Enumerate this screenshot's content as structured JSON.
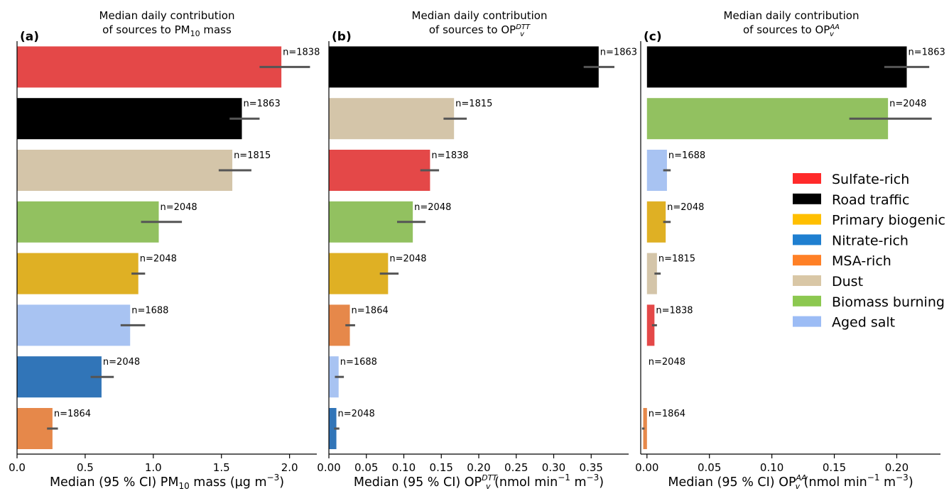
{
  "chart_data": [
    {
      "type": "bar",
      "orientation": "horizontal",
      "panel_label": "(a)",
      "title_lines": [
        "Median daily contribution",
        "of sources to PM",
        "10",
        " mass"
      ],
      "xlabel": [
        "Median (95 % CI) PM",
        "10",
        " mass (µg  m",
        "−3",
        ")"
      ],
      "xlim": [
        0,
        2.2
      ],
      "xticks": [
        0.0,
        0.5,
        1.0,
        1.5,
        2.0
      ],
      "xtick_labels": [
        "0.0",
        "0.5",
        "1.0",
        "1.5",
        "2.0"
      ],
      "bars": [
        {
          "source": "Sulfate-rich",
          "value": 1.94,
          "ci": [
            1.78,
            2.15
          ],
          "n": "n=1838"
        },
        {
          "source": "Road traffic",
          "value": 1.65,
          "ci": [
            1.56,
            1.78
          ],
          "n": "n=1863"
        },
        {
          "source": "Dust",
          "value": 1.58,
          "ci": [
            1.48,
            1.72
          ],
          "n": "n=1815"
        },
        {
          "source": "Biomass burning",
          "value": 1.04,
          "ci": [
            0.91,
            1.21
          ],
          "n": "n=2048"
        },
        {
          "source": "Primary biogenic",
          "value": 0.89,
          "ci": [
            0.84,
            0.94
          ],
          "n": "n=2048"
        },
        {
          "source": "Aged salt",
          "value": 0.83,
          "ci": [
            0.76,
            0.94
          ],
          "n": "n=1688"
        },
        {
          "source": "Nitrate-rich",
          "value": 0.62,
          "ci": [
            0.54,
            0.71
          ],
          "n": "n=2048"
        },
        {
          "source": "MSA-rich",
          "value": 0.26,
          "ci": [
            0.22,
            0.3
          ],
          "n": "n=1864"
        }
      ]
    },
    {
      "type": "bar",
      "orientation": "horizontal",
      "panel_label": "(b)",
      "title_lines": [
        "Median daily contribution",
        "of sources to OP",
        "DTT",
        "v"
      ],
      "xlabel": [
        "Median (95 % CI) OP",
        "DTT",
        "v",
        " (nmol  min",
        "−1",
        "  m",
        "−3",
        ")"
      ],
      "xlim": [
        0,
        0.4
      ],
      "xticks": [
        0.0,
        0.05,
        0.1,
        0.15,
        0.2,
        0.25,
        0.3,
        0.35
      ],
      "xtick_labels": [
        "0.00",
        "0.05",
        "0.10",
        "0.15",
        "0.20",
        "0.25",
        "0.30",
        "0.35"
      ],
      "bars": [
        {
          "source": "Road traffic",
          "value": 0.36,
          "ci": [
            0.34,
            0.381
          ],
          "n": "n=1863"
        },
        {
          "source": "Dust",
          "value": 0.167,
          "ci": [
            0.153,
            0.184
          ],
          "n": "n=1815"
        },
        {
          "source": "Sulfate-rich",
          "value": 0.135,
          "ci": [
            0.122,
            0.147
          ],
          "n": "n=1838"
        },
        {
          "source": "Biomass burning",
          "value": 0.112,
          "ci": [
            0.091,
            0.129
          ],
          "n": "n=2048"
        },
        {
          "source": "Primary biogenic",
          "value": 0.079,
          "ci": [
            0.068,
            0.093
          ],
          "n": "n=2048"
        },
        {
          "source": "MSA-rich",
          "value": 0.028,
          "ci": [
            0.022,
            0.035
          ],
          "n": "n=1864"
        },
        {
          "source": "Aged salt",
          "value": 0.013,
          "ci": [
            0.008,
            0.02
          ],
          "n": "n=1688"
        },
        {
          "source": "Nitrate-rich",
          "value": 0.01,
          "ci": [
            0.007,
            0.014
          ],
          "n": "n=2048"
        }
      ]
    },
    {
      "type": "bar",
      "orientation": "horizontal",
      "panel_label": "(c)",
      "title_lines": [
        "Median daily contribution",
        "of sources to OP",
        "AA",
        "v"
      ],
      "xlabel": [
        "Median (95 % CI) OP",
        "AA",
        "v",
        " (nmol  min",
        "−1",
        "  m",
        "−3",
        ")"
      ],
      "xlim": [
        -0.005,
        0.235
      ],
      "xticks": [
        0.0,
        0.05,
        0.1,
        0.15,
        0.2
      ],
      "xtick_labels": [
        "0.00",
        "0.05",
        "0.10",
        "0.15",
        "0.20"
      ],
      "bars": [
        {
          "source": "Road traffic",
          "value": 0.208,
          "ci": [
            0.19,
            0.226
          ],
          "n": "n=1863"
        },
        {
          "source": "Biomass burning",
          "value": 0.193,
          "ci": [
            0.162,
            0.228
          ],
          "n": "n=2048"
        },
        {
          "source": "Aged salt",
          "value": 0.016,
          "ci": [
            0.013,
            0.019
          ],
          "n": "n=1688"
        },
        {
          "source": "Primary biogenic",
          "value": 0.015,
          "ci": [
            0.013,
            0.019
          ],
          "n": "n=2048"
        },
        {
          "source": "Dust",
          "value": 0.008,
          "ci": [
            0.006,
            0.011
          ],
          "n": "n=1815"
        },
        {
          "source": "Sulfate-rich",
          "value": 0.006,
          "ci": [
            0.004,
            0.008
          ],
          "n": "n=1838"
        },
        {
          "source": "Nitrate-rich",
          "value": 0.0,
          "ci": [
            0.0,
            0.0
          ],
          "n": "n=2048"
        },
        {
          "source": "MSA-rich",
          "value": -0.003,
          "ci": [
            -0.004,
            -0.002
          ],
          "n": "n=1864"
        }
      ]
    }
  ],
  "legend": {
    "placement": "right",
    "items": [
      {
        "label": "Sulfate-rich",
        "color": "#ff2a2a"
      },
      {
        "label": "Road traffic",
        "color": "#000000"
      },
      {
        "label": "Primary biogenic",
        "color": "#ffbf00"
      },
      {
        "label": "Nitrate-rich",
        "color": "#1f7fd0"
      },
      {
        "label": "MSA-rich",
        "color": "#ff8026"
      },
      {
        "label": "Dust",
        "color": "#d9c7a6"
      },
      {
        "label": "Biomass burning",
        "color": "#8cc850"
      },
      {
        "label": "Aged salt",
        "color": "#9cbcf5"
      }
    ]
  },
  "colors": {
    "Sulfate-rich": "#e44848",
    "Road traffic": "#000000",
    "Primary biogenic": "#dfb024",
    "Nitrate-rich": "#3175b8",
    "MSA-rich": "#e6884a",
    "Dust": "#d4c5a9",
    "Biomass burning": "#92c160",
    "Aged salt": "#a8c3f2",
    "error_bar": "#555555"
  }
}
